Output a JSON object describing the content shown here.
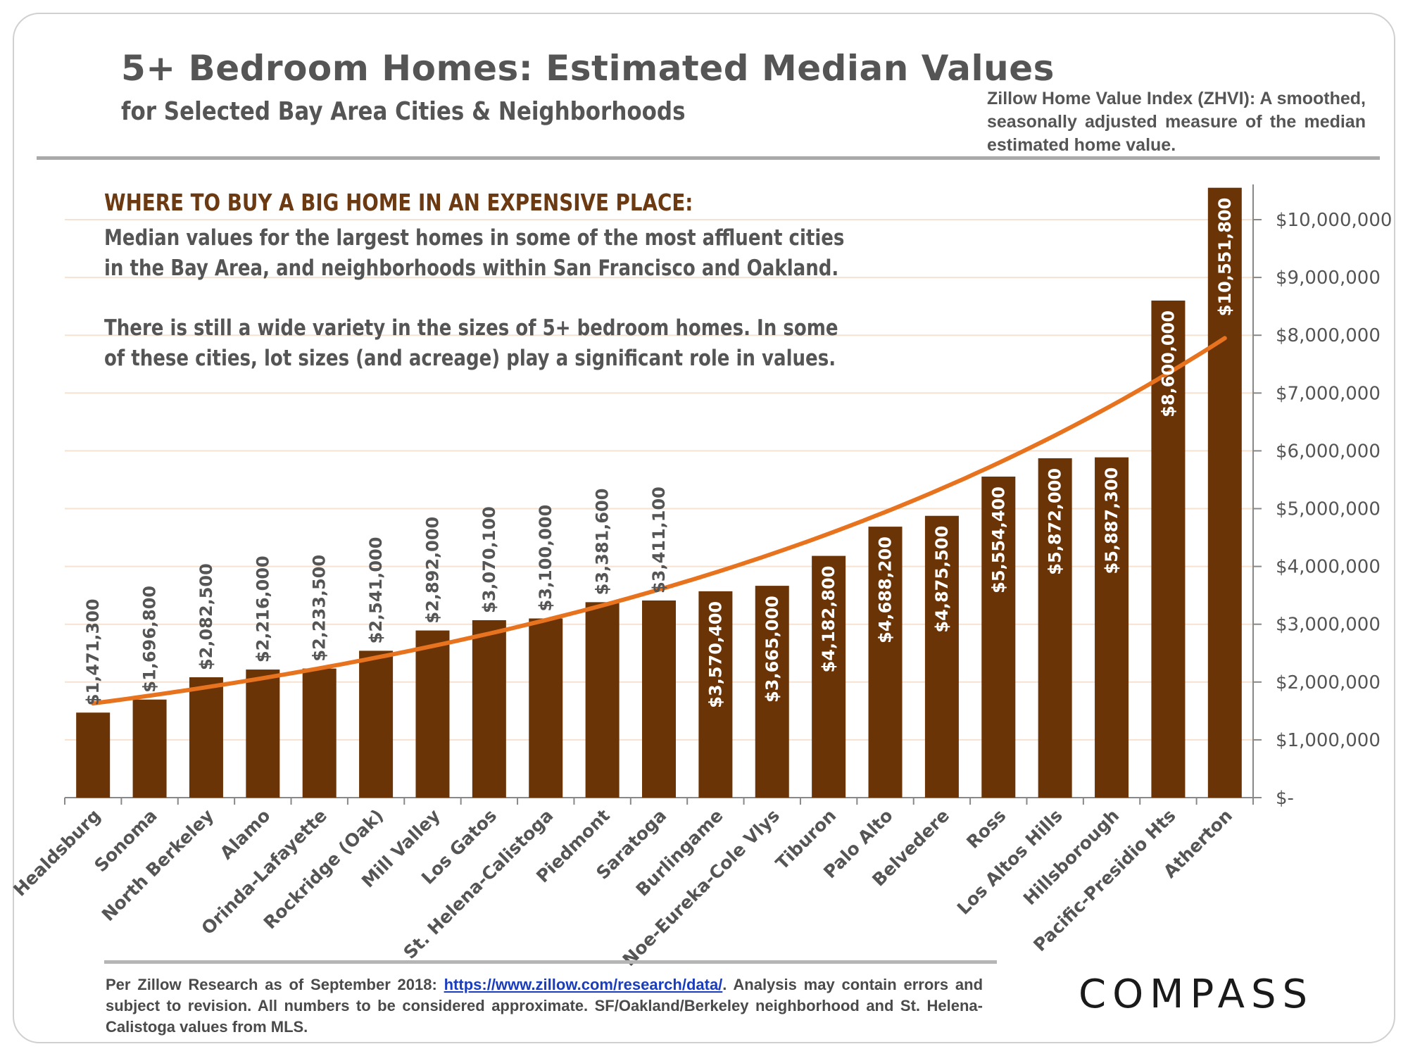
{
  "title": "5+ Bedroom Homes: Estimated Median Values",
  "subtitle": "for Selected Bay Area Cities & Neighborhoods",
  "zhvi_note": "Zillow Home Value Index (ZHVI): A smoothed, seasonally adjusted measure of the median estimated home value.",
  "callout": {
    "heading": "WHERE TO BUY A BIG HOME IN AN EXPENSIVE PLACE:",
    "line1": "Median values for the largest homes in some of the most affluent cities",
    "line2": "in the Bay Area, and neighborhoods within San Francisco and Oakland.",
    "line3": "There is still a wide variety in the sizes of 5+ bedroom homes. In some",
    "line4": "of these cities, lot sizes (and acreage) play a significant role in values."
  },
  "source": {
    "prefix": "Per Zillow Research as of September 2018: ",
    "link": "https://www.zillow.com/research/data/",
    "suffix": ". Analysis may contain errors and subject to revision. All numbers to be considered approximate. SF/Oakland/Berkeley neighborhood and St. Helena-Calistoga values from MLS."
  },
  "logo": "COMPASS",
  "colors": {
    "bar": "#6b3407",
    "trend": "#e8731f",
    "grid": "#f5e2d0"
  },
  "chart_data": {
    "type": "bar",
    "title": "5+ Bedroom Homes: Estimated Median Values",
    "xlabel": "",
    "ylabel": "",
    "ylim": [
      0,
      10551800
    ],
    "y_ticks": [
      0,
      1000000,
      2000000,
      3000000,
      4000000,
      5000000,
      6000000,
      7000000,
      8000000,
      9000000,
      10000000
    ],
    "y_tick_labels": [
      "$-",
      "$1,000,000",
      "$2,000,000",
      "$3,000,000",
      "$4,000,000",
      "$5,000,000",
      "$6,000,000",
      "$7,000,000",
      "$8,000,000",
      "$9,000,000",
      "$10,000,000"
    ],
    "y_axis_side": "right",
    "categories": [
      "Healdsburg",
      "Sonoma",
      "North Berkeley",
      "Alamo",
      "Orinda-Lafayette",
      "Rockridge (Oak)",
      "Mill Valley",
      "Los Gatos",
      "St. Helena-Calistoga",
      "Piedmont",
      "Saratoga",
      "Burlingame",
      "Noe-Eureka-Cole Vlys",
      "Tiburon",
      "Palo Alto",
      "Belvedere",
      "Ross",
      "Los Altos Hills",
      "Hillsborough",
      "Pacific-Presidio Hts",
      "Atherton"
    ],
    "values": [
      1471300,
      1696800,
      2082500,
      2216000,
      2233500,
      2541000,
      2892000,
      3070100,
      3100000,
      3381600,
      3411100,
      3570400,
      3665000,
      4182800,
      4688200,
      4875500,
      5554400,
      5872000,
      5887300,
      8600000,
      10551800
    ],
    "value_labels": [
      "$1,471,300",
      "$1,696,800",
      "$2,082,500",
      "$2,216,000",
      "$2,233,500",
      "$2,541,000",
      "$2,892,000",
      "$3,070,100",
      "$3,100,000",
      "$3,381,600",
      "$3,411,100",
      "$3,570,400",
      "$3,665,000",
      "$4,182,800",
      "$4,688,200",
      "$4,875,500",
      "$5,554,400",
      "$5,872,000",
      "$5,887,300",
      "$8,600,000",
      "$10,551,800"
    ],
    "value_label_position": [
      "outside",
      "outside",
      "outside",
      "outside",
      "outside",
      "outside",
      "outside",
      "outside",
      "outside",
      "outside",
      "outside",
      "inside",
      "inside",
      "inside",
      "inside",
      "inside",
      "inside",
      "inside",
      "inside",
      "inside",
      "inside"
    ],
    "trendline": {
      "type": "exponential",
      "start_value": 1630000,
      "end_value": 7950000
    }
  }
}
